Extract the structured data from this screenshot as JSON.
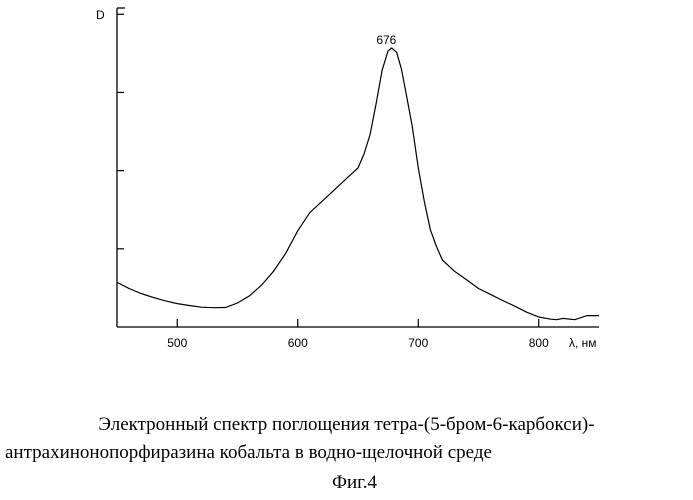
{
  "chart_data": {
    "type": "line",
    "ylabel": "D",
    "xlabel": "λ, нм",
    "xlim": [
      450,
      850
    ],
    "ylim": [
      0,
      1.0
    ],
    "x_ticks": [
      500,
      600,
      700,
      800
    ],
    "x_tick_labels": [
      "500",
      "600",
      "700",
      "800"
    ],
    "y_tick_count": 4,
    "grid": false,
    "peak": {
      "x": 676,
      "y": 0.99,
      "label": "676"
    },
    "series": [
      {
        "x": [
          450,
          460,
          470,
          480,
          490,
          500,
          510,
          520,
          530,
          540,
          550,
          560,
          570,
          580,
          590,
          600,
          610,
          620,
          630,
          640,
          650,
          655,
          660,
          665,
          670,
          675,
          678,
          682,
          686,
          690,
          695,
          700,
          705,
          710,
          715,
          720,
          730,
          740,
          750,
          760,
          770,
          780,
          790,
          800,
          810,
          815,
          820,
          830,
          840,
          850
        ],
        "y": [
          0.16,
          0.138,
          0.12,
          0.106,
          0.094,
          0.084,
          0.077,
          0.071,
          0.069,
          0.07,
          0.086,
          0.112,
          0.15,
          0.2,
          0.264,
          0.345,
          0.41,
          0.45,
          0.49,
          0.53,
          0.57,
          0.62,
          0.69,
          0.8,
          0.92,
          0.99,
          1.0,
          0.985,
          0.925,
          0.835,
          0.72,
          0.57,
          0.45,
          0.35,
          0.29,
          0.24,
          0.2,
          0.17,
          0.138,
          0.117,
          0.095,
          0.075,
          0.053,
          0.036,
          0.028,
          0.026,
          0.031,
          0.026,
          0.041,
          0.041
        ]
      }
    ]
  },
  "caption": {
    "line1": "Электронный спектр поглощения тетра-(5-бром-6-карбокси)-",
    "line2": "антрахинонопорфиразина кобальта в водно-щелочной среде"
  },
  "figure_label": "Фиг.4"
}
